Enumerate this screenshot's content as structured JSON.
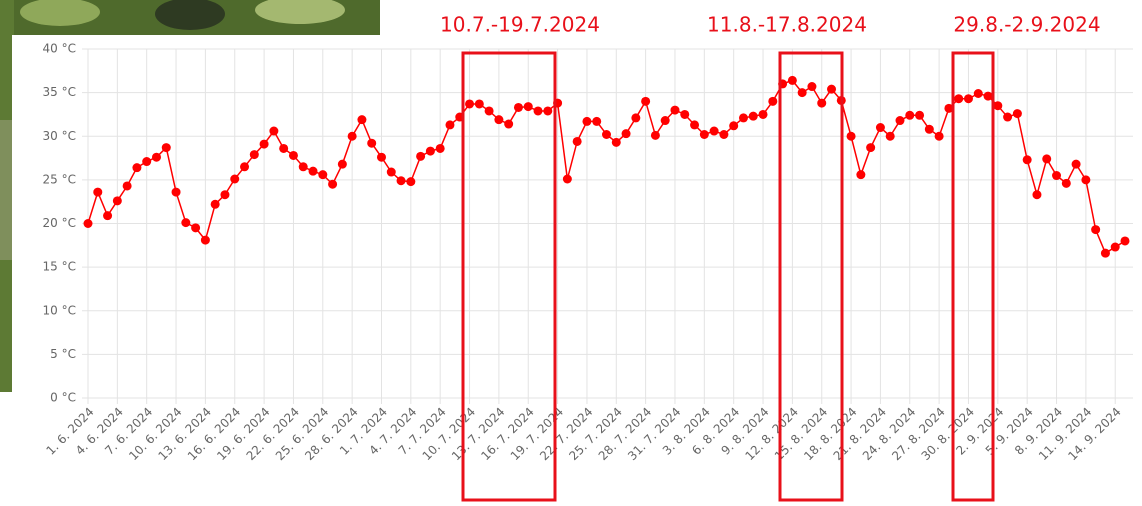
{
  "chart_data": {
    "type": "line",
    "categories": [
      "1. 6. 2024",
      null,
      null,
      "4. 6. 2024",
      null,
      null,
      "7. 6. 2024",
      null,
      null,
      "10. 6. 2024",
      null,
      null,
      "13. 6. 2024",
      null,
      null,
      "16. 6. 2024",
      null,
      null,
      "19. 6. 2024",
      null,
      null,
      "22. 6. 2024",
      null,
      null,
      "25. 6. 2024",
      null,
      null,
      "28. 6. 2024",
      null,
      null,
      "1. 7. 2024",
      null,
      null,
      "4. 7. 2024",
      null,
      null,
      "7. 7. 2024",
      null,
      null,
      "10. 7. 2024",
      null,
      null,
      "13. 7. 2024",
      null,
      null,
      "16. 7. 2024",
      null,
      null,
      "19. 7. 2024",
      null,
      null,
      "22. 7. 2024",
      null,
      null,
      "25. 7. 2024",
      null,
      null,
      "28. 7. 2024",
      null,
      null,
      "31. 7. 2024",
      null,
      null,
      "3. 8. 2024",
      null,
      null,
      "6. 8. 2024",
      null,
      null,
      "9. 8. 2024",
      null,
      null,
      "12. 8. 2024",
      null,
      null,
      "15. 8. 2024",
      null,
      null,
      "18. 8. 2024",
      null,
      null,
      "21. 8. 2024",
      null,
      null,
      "24. 8. 2024",
      null,
      null,
      "27. 8. 2024",
      null,
      null,
      "30. 8. 2024",
      null,
      null,
      "2. 9. 2024",
      null,
      null,
      "5. 9. 2024",
      null,
      null,
      "8. 9. 2024",
      null,
      null,
      "11. 9. 2024",
      null,
      null,
      "14. 9. 2024",
      null
    ],
    "values": [
      20.0,
      23.6,
      20.9,
      22.6,
      24.3,
      26.4,
      27.1,
      27.6,
      28.7,
      23.6,
      20.1,
      19.5,
      18.1,
      22.2,
      23.3,
      25.1,
      26.5,
      27.9,
      29.1,
      30.6,
      28.6,
      27.8,
      26.5,
      26.0,
      25.6,
      24.5,
      26.8,
      30.0,
      31.9,
      29.2,
      27.6,
      25.9,
      24.9,
      24.8,
      27.7,
      28.3,
      28.6,
      31.3,
      32.2,
      33.7,
      33.7,
      32.9,
      31.9,
      31.4,
      33.3,
      33.4,
      32.9,
      32.9,
      33.8,
      25.1,
      29.4,
      31.7,
      31.7,
      30.2,
      29.3,
      30.3,
      32.1,
      34.0,
      30.1,
      31.8,
      33.0,
      32.5,
      31.3,
      30.2,
      30.6,
      30.2,
      31.2,
      32.1,
      32.3,
      32.5,
      34.0,
      36.0,
      36.4,
      35.0,
      35.7,
      33.8,
      35.4,
      34.1,
      30.0,
      25.6,
      28.7,
      31.0,
      30.0,
      31.8,
      32.4,
      32.4,
      30.8,
      30.0,
      33.2,
      34.3,
      34.3,
      34.9,
      34.6,
      33.5,
      32.2,
      32.6,
      27.3,
      23.3,
      27.4,
      25.5,
      24.6,
      26.8,
      25.0,
      19.3,
      16.6,
      17.3,
      18.0
    ],
    "color": "#ff0000",
    "ylim": [
      0,
      40
    ],
    "yticks": [
      {
        "value": 0,
        "label": "0 °C"
      },
      {
        "value": 5,
        "label": "5 °C"
      },
      {
        "value": 10,
        "label": "10 °C"
      },
      {
        "value": 15,
        "label": "15 °C"
      },
      {
        "value": 20,
        "label": "20 °C"
      },
      {
        "value": 25,
        "label": "25 °C"
      },
      {
        "value": 30,
        "label": "30 °C"
      },
      {
        "value": 35,
        "label": "35 °C"
      },
      {
        "value": 40,
        "label": "40 °C"
      }
    ],
    "grid": true,
    "annotations": [
      {
        "text": "10.7.-19.7.2024"
      },
      {
        "text": "11.8.-17.8.2024"
      },
      {
        "text": "29.8.-2.9.2024"
      }
    ]
  }
}
